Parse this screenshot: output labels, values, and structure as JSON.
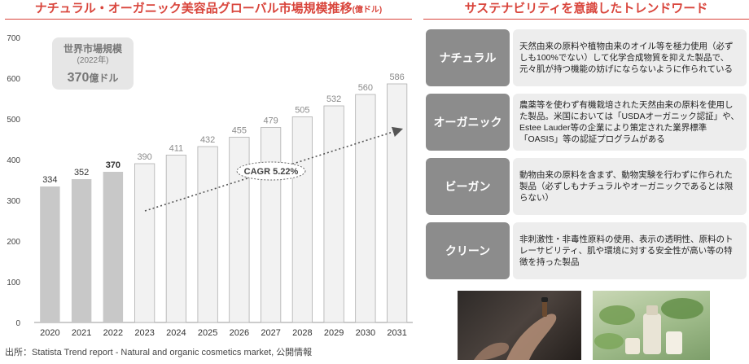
{
  "left_title": {
    "main": "ナチュラル・オーガニック美容品グローバル市場規模推移",
    "unit": "(億ドル)"
  },
  "right_title": "サステナビリティを意識したトレンドワード",
  "chart_data": {
    "type": "bar",
    "categories": [
      "2020",
      "2021",
      "2022",
      "2023",
      "2024",
      "2025",
      "2026",
      "2027",
      "2028",
      "2029",
      "2030",
      "2031"
    ],
    "values": [
      334,
      352,
      370,
      390,
      411,
      432,
      455,
      479,
      505,
      532,
      560,
      586
    ],
    "actual_through": "2022",
    "ylim": [
      0,
      700
    ],
    "yticks": [
      0,
      100,
      200,
      300,
      400,
      500,
      600,
      700
    ],
    "grid": false,
    "colors": {
      "actual": "#c8c8c8",
      "forecast": "#f2f2f2",
      "forecast_stroke": "#b0b0b0"
    },
    "callout": {
      "line1": "世界市場規模",
      "line2": "(2022年)",
      "value": "370",
      "unit": "億ドル"
    },
    "cagr_label": "CAGR 5.22%"
  },
  "source": "出所：Statista Trend report - Natural and organic cosmetics market, 公開情報",
  "trends": [
    {
      "label": "ナチュラル",
      "desc": "天然由来の原料や植物由来のオイル等を極力使用（必ずしも100%でない）して化学合成物質を抑えた製品で、元々肌が持つ機能の妨げにならないように作られている"
    },
    {
      "label": "オーガニック",
      "desc": "農薬等を使わず有機栽培された天然由来の原料を使用した製品。米国においては「USDAオーガニック認証」や、Estee Lauder等の企業により策定された業界標準「OASIS」等の認証プログラムがある"
    },
    {
      "label": "ビーガン",
      "desc": "動物由来の原料を含まず、動物実験を行わずに作られた製品（必ずしもナチュラルやオーガニックであるとは限らない）"
    },
    {
      "label": "クリーン",
      "desc": "非刺激性・非毒性原料の使用、表示の透明性、原料のトレーサビリティ、肌や環境に対する安全性が高い等の特徴を持った製品"
    }
  ]
}
